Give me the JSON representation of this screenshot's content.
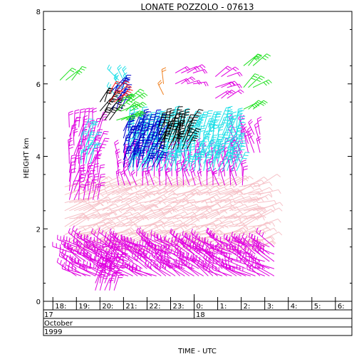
{
  "chart_data": {
    "type": "wind-profile",
    "title": "LONATE POZZOLO - 07613",
    "ylabel": "HEIGHT km",
    "xlabel": "TIME - UTC",
    "ylim": [
      0,
      8
    ],
    "yticks": [
      "0",
      "2",
      "4",
      "6",
      "8"
    ],
    "xlim": [
      17.6,
      30.7
    ],
    "hour_ticks": [
      {
        "h": 18,
        "label": "18:"
      },
      {
        "h": 19,
        "label": "19:"
      },
      {
        "h": 20,
        "label": "20:"
      },
      {
        "h": 21,
        "label": "21:"
      },
      {
        "h": 22,
        "label": "22:"
      },
      {
        "h": 23,
        "label": "23:"
      },
      {
        "h": 24,
        "label": "0:"
      },
      {
        "h": 25,
        "label": "1:"
      },
      {
        "h": 26,
        "label": "2:"
      },
      {
        "h": 27,
        "label": "3:"
      },
      {
        "h": 28,
        "label": "4:"
      },
      {
        "h": 29,
        "label": "5:"
      },
      {
        "h": 30,
        "label": "6:"
      }
    ],
    "date_rows": {
      "day_start": "17",
      "day_next": "18",
      "month": "October",
      "year": "1999"
    },
    "palette": {
      "magenta": "#e000e0",
      "pink": "#f6c2c8",
      "cyan": "#20e0e8",
      "blue": "#0000cc",
      "black": "#000000",
      "green": "#20e020",
      "red": "#ff2020",
      "orange": "#f08020"
    },
    "series": [
      {
        "color": "pink",
        "t_from": 18.5,
        "t_to": 26.8,
        "t_step": 0.2,
        "h_from": 1.4,
        "h_to": 3.2,
        "h_step": 0.22,
        "dir": 70,
        "len": 0.55,
        "barbs": 1
      },
      {
        "color": "magenta",
        "t_from": 19.0,
        "t_to": 27.4,
        "t_step": 0.2,
        "h_from": 0.7,
        "h_to": 1.5,
        "h_step": 0.2,
        "dir": 300,
        "len": 0.6,
        "barbs": 3
      },
      {
        "color": "magenta",
        "t_from": 18.7,
        "t_to": 20.0,
        "t_step": 0.2,
        "h_from": 2.8,
        "h_to": 4.8,
        "h_step": 0.25,
        "dir": 10,
        "len": 0.5,
        "barbs": 2
      },
      {
        "color": "magenta",
        "t_from": 19.8,
        "t_to": 20.6,
        "t_step": 0.2,
        "h_from": 0.3,
        "h_to": 1.1,
        "h_step": 0.2,
        "dir": 20,
        "len": 0.45,
        "barbs": 2
      },
      {
        "color": "magenta",
        "t_from": 20.8,
        "t_to": 26.2,
        "t_step": 0.25,
        "h_from": 3.2,
        "h_to": 4.0,
        "h_step": 0.25,
        "dir": 350,
        "len": 0.45,
        "barbs": 2
      },
      {
        "color": "magenta",
        "t_from": 25.8,
        "t_to": 26.8,
        "t_step": 0.25,
        "h_from": 4.1,
        "h_to": 4.6,
        "h_step": 0.25,
        "dir": 340,
        "len": 0.45,
        "barbs": 2
      },
      {
        "color": "cyan",
        "t_from": 21.2,
        "t_to": 25.9,
        "t_step": 0.2,
        "h_from": 3.6,
        "h_to": 4.9,
        "h_step": 0.2,
        "dir": 15,
        "len": 0.5,
        "barbs": 3
      },
      {
        "color": "cyan",
        "t_from": 19.2,
        "t_to": 19.6,
        "t_step": 0.2,
        "h_from": 3.8,
        "h_to": 4.6,
        "h_step": 0.25,
        "dir": 15,
        "len": 0.45,
        "barbs": 2
      },
      {
        "color": "cyan",
        "t_from": 20.8,
        "t_to": 21.2,
        "t_step": 0.2,
        "h_from": 5.6,
        "h_to": 6.3,
        "h_step": 0.25,
        "dir": 330,
        "len": 0.4,
        "barbs": 2
      },
      {
        "color": "blue",
        "t_from": 21.0,
        "t_to": 22.4,
        "t_step": 0.2,
        "h_from": 3.7,
        "h_to": 4.7,
        "h_step": 0.2,
        "dir": 20,
        "len": 0.5,
        "barbs": 3
      },
      {
        "color": "blue",
        "t_from": 20.5,
        "t_to": 21.0,
        "t_step": 0.2,
        "h_from": 5.3,
        "h_to": 5.9,
        "h_step": 0.25,
        "dir": 30,
        "len": 0.45,
        "barbs": 3
      },
      {
        "color": "black",
        "t_from": 22.5,
        "t_to": 23.7,
        "t_step": 0.2,
        "h_from": 4.2,
        "h_to": 4.9,
        "h_step": 0.2,
        "dir": 20,
        "len": 0.5,
        "barbs": 3
      },
      {
        "color": "black",
        "t_from": 20.0,
        "t_to": 20.5,
        "t_step": 0.2,
        "h_from": 5.0,
        "h_to": 5.5,
        "h_step": 0.25,
        "dir": 30,
        "len": 0.45,
        "barbs": 3
      },
      {
        "color": "green",
        "t_from": 20.7,
        "t_to": 21.3,
        "t_step": 0.2,
        "h_from": 5.0,
        "h_to": 5.5,
        "h_step": 0.25,
        "dir": 60,
        "len": 0.45,
        "barbs": 3
      },
      {
        "color": "green",
        "t_from": 18.3,
        "t_to": 18.8,
        "t_step": 0.25,
        "h_from": 6.1,
        "h_to": 6.3,
        "h_step": 0.25,
        "dir": 40,
        "len": 0.4,
        "barbs": 2
      },
      {
        "color": "green",
        "t_from": 26.1,
        "t_to": 26.5,
        "t_step": 0.2,
        "h_from": 5.3,
        "h_to": 6.5,
        "h_step": 0.6,
        "dir": 50,
        "len": 0.45,
        "barbs": 3
      },
      {
        "color": "red",
        "t_from": 20.4,
        "t_to": 20.9,
        "t_step": 0.2,
        "h_from": 5.5,
        "h_to": 5.9,
        "h_step": 0.25,
        "dir": 40,
        "len": 0.4,
        "barbs": 2
      },
      {
        "color": "orange",
        "t_from": 22.7,
        "t_to": 22.8,
        "t_step": 0.2,
        "h_from": 5.7,
        "h_to": 6.0,
        "h_step": 0.3,
        "dir": 340,
        "len": 0.4,
        "barbs": 2
      },
      {
        "color": "magenta",
        "t_from": 24.9,
        "t_to": 25.6,
        "t_step": 0.25,
        "h_from": 5.6,
        "h_to": 6.2,
        "h_step": 0.3,
        "dir": 60,
        "len": 0.4,
        "barbs": 2
      },
      {
        "color": "magenta",
        "t_from": 23.2,
        "t_to": 24.0,
        "t_step": 0.25,
        "h_from": 6.0,
        "h_to": 6.3,
        "h_step": 0.3,
        "dir": 70,
        "len": 0.4,
        "barbs": 2
      }
    ]
  }
}
